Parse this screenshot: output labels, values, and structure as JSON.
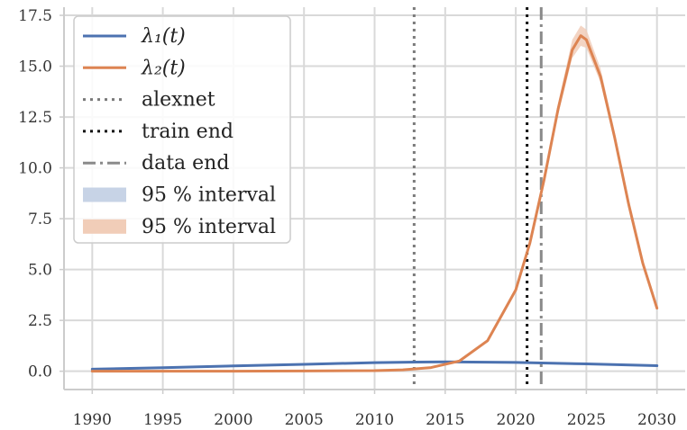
{
  "chart_data": {
    "type": "line",
    "title": "",
    "xlabel": "",
    "ylabel": "",
    "xlim": [
      1988,
      2032
    ],
    "ylim": [
      -0.9,
      17.9
    ],
    "xticks": [
      1990,
      1995,
      2000,
      2005,
      2010,
      2015,
      2020,
      2025,
      2030
    ],
    "xtick_labels": [
      "1990",
      "1995",
      "2000",
      "2005",
      "2010",
      "2015",
      "2020",
      "2025",
      "2030"
    ],
    "yticks": [
      0,
      2.5,
      5,
      7.5,
      10,
      12.5,
      15,
      17.5
    ],
    "ytick_labels": [
      "0.0",
      "2.5",
      "5.0",
      "7.5",
      "10.0",
      "12.5",
      "15.0",
      "17.5"
    ],
    "grid": true,
    "legend_position": "top-left",
    "series": [
      {
        "name": "λ₁(t)",
        "color": "#4c72b0",
        "x": [
          1990,
          1995,
          2000,
          2005,
          2010,
          2013,
          2015,
          2020,
          2025,
          2030
        ],
        "y": [
          0.1,
          0.17,
          0.26,
          0.34,
          0.42,
          0.45,
          0.46,
          0.43,
          0.36,
          0.27
        ],
        "interval": {
          "label": "95 % interval",
          "color": "#c7d3e6",
          "lower": [
            0.08,
            0.15,
            0.24,
            0.32,
            0.4,
            0.43,
            0.44,
            0.41,
            0.34,
            0.25
          ],
          "upper": [
            0.12,
            0.19,
            0.28,
            0.36,
            0.44,
            0.47,
            0.48,
            0.45,
            0.38,
            0.29
          ]
        }
      },
      {
        "name": "λ₂(t)",
        "color": "#dd8452",
        "x": [
          1990,
          2000,
          2005,
          2010,
          2012,
          2014,
          2016,
          2018,
          2020,
          2021,
          2022,
          2023,
          2024,
          2024.6,
          2025,
          2026,
          2027,
          2028,
          2029,
          2030
        ],
        "y": [
          0.0,
          0.0,
          0.01,
          0.03,
          0.07,
          0.18,
          0.5,
          1.5,
          4.0,
          6.3,
          9.4,
          12.9,
          15.8,
          16.5,
          16.3,
          14.5,
          11.5,
          8.2,
          5.3,
          3.1
        ],
        "interval": {
          "label": "95 % interval",
          "color": "#f1cdb8",
          "lower": [
            0.0,
            0.0,
            0.01,
            0.03,
            0.07,
            0.18,
            0.49,
            1.47,
            3.94,
            6.2,
            9.2,
            12.6,
            15.4,
            16.0,
            15.9,
            14.2,
            11.3,
            8.05,
            5.2,
            3.05
          ],
          "upper": [
            0.0,
            0.0,
            0.01,
            0.03,
            0.07,
            0.18,
            0.51,
            1.53,
            4.06,
            6.4,
            9.6,
            13.2,
            16.3,
            17.0,
            16.8,
            14.9,
            11.8,
            8.4,
            5.4,
            3.15
          ]
        }
      }
    ],
    "vlines": [
      {
        "label": "alexnet",
        "x": 2012.8,
        "color": "#7a7a7a",
        "style": "dotted"
      },
      {
        "label": "train end",
        "x": 2020.8,
        "color": "#111111",
        "style": "dotted"
      },
      {
        "label": "data end",
        "x": 2021.8,
        "color": "#8a8a8a",
        "style": "dashdot"
      }
    ]
  }
}
